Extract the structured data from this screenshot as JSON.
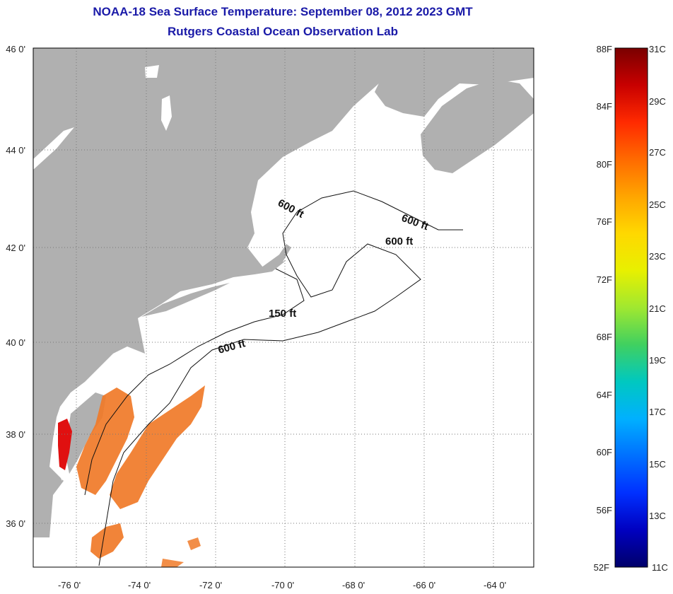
{
  "title": "NOAA-18 Sea Surface Temperature:  September 08, 2012 2023 GMT",
  "subtitle": "Rutgers Coastal Ocean Observation Lab",
  "lat_labels": [
    "46 0'",
    "44 0'",
    "42 0'",
    "40 0'",
    "38 0'",
    "36 0'"
  ],
  "lon_labels": [
    "-76 0'",
    "-74 0'",
    "-72 0'",
    "-70 0'",
    "-68 0'",
    "-66 0'",
    "-64 0'"
  ],
  "contour_labels": [
    "600 ft",
    "600 ft",
    "600 ft",
    "150 ft",
    "600 ft"
  ],
  "colorbar": {
    "f_labels": [
      "88F",
      "84F",
      "80F",
      "76F",
      "72F",
      "68F",
      "64F",
      "60F",
      "56F",
      "52F"
    ],
    "c_labels": [
      "31C",
      "29C",
      "27C",
      "25C",
      "23C",
      "21C",
      "19C",
      "17C",
      "15C",
      "13C",
      "11C"
    ],
    "colors": [
      "#7a0000",
      "#c80000",
      "#ff2a00",
      "#ff6a00",
      "#ffa500",
      "#ffd800",
      "#e8f000",
      "#a0e830",
      "#40d060",
      "#00c8c0",
      "#00b0ff",
      "#0070ff",
      "#0030ff",
      "#0000c0",
      "#00006a"
    ]
  },
  "colors": {
    "land": "#b0b0b0",
    "ocean": "#ffffff",
    "title": "#1a1aa8",
    "sst_warm": "#f07a28",
    "sst_hot": "#e01010"
  }
}
